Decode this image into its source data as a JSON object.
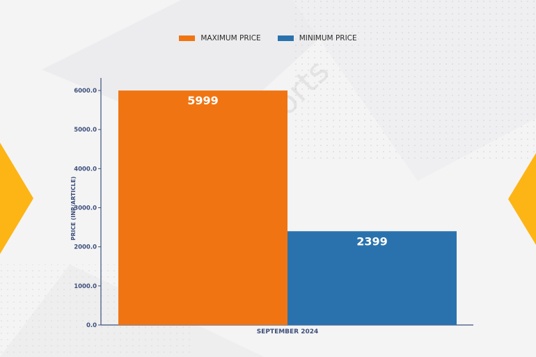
{
  "colors": {
    "maximum": "#f07512",
    "minimum": "#2a72ad",
    "axis": "#3d4f7a",
    "accent": "#fdb515"
  },
  "watermark": "D&J Reports",
  "legend": [
    {
      "label": "MAXIMUM PRICE",
      "color": "#f07512"
    },
    {
      "label": "MINIMUM PRICE",
      "color": "#2a72ad"
    }
  ],
  "chart_data": {
    "type": "bar",
    "categories": [
      "SEPTEMBER 2024"
    ],
    "series": [
      {
        "name": "MAXIMUM PRICE",
        "values": [
          5999
        ]
      },
      {
        "name": "MINIMUM PRICE",
        "values": [
          2399
        ]
      }
    ],
    "data_labels": [
      "5999",
      "2399"
    ],
    "ylabel": "PRICE (INR/ARTICLE)",
    "xlabel": "SEPTEMBER 2024",
    "ylim": [
      0,
      6000
    ],
    "yticks": [
      "0.0",
      "1000.0",
      "2000.0",
      "3000.0",
      "4000.0",
      "5000.0",
      "6000.0"
    ],
    "grid": false,
    "legend_position": "top"
  }
}
